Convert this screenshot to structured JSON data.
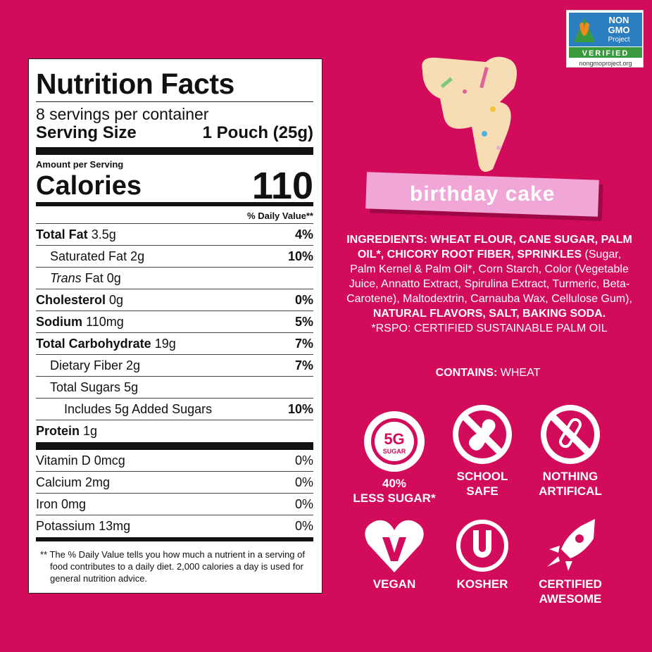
{
  "nutrition": {
    "title": "Nutrition Facts",
    "servings": "8 servings per container",
    "serving_size_label": "Serving Size",
    "serving_size_value": "1 Pouch (25g)",
    "amount_per_serving": "Amount per Serving",
    "calories_label": "Calories",
    "calories_value": "110",
    "daily_value_header": "% Daily Value**",
    "rows": [
      {
        "name": "Total Fat",
        "amount": "3.5g",
        "dv": "4%"
      },
      {
        "name": "Saturated Fat",
        "amount": "2g",
        "dv": "10%"
      },
      {
        "name": "Trans",
        "name2": "Fat",
        "amount": "0g",
        "dv": ""
      },
      {
        "name": "Cholesterol",
        "amount": "0g",
        "dv": "0%"
      },
      {
        "name": "Sodium",
        "amount": "110mg",
        "dv": "5%"
      },
      {
        "name": "Total Carbohydrate",
        "amount": "19g",
        "dv": "7%"
      },
      {
        "name": "Dietary Fiber",
        "amount": "2g",
        "dv": "7%"
      },
      {
        "name": "Total Sugars",
        "amount": "5g",
        "dv": ""
      },
      {
        "name": "Includes 5g Added Sugars",
        "amount": "",
        "dv": "10%"
      },
      {
        "name": "Protein",
        "amount": "1g",
        "dv": ""
      }
    ],
    "vitamins": [
      {
        "name": "Vitamin D",
        "amount": "0mcg",
        "dv": "0%"
      },
      {
        "name": "Calcium",
        "amount": "2mg",
        "dv": "0%"
      },
      {
        "name": "Iron",
        "amount": "0mg",
        "dv": "0%"
      },
      {
        "name": "Potassium",
        "amount": "13mg",
        "dv": "0%"
      }
    ],
    "footnote": "** The % Daily Value tells you how much a nutrient in a serving of food contributes to a daily diet. 2,000 calories a day is used for general nutrition advice."
  },
  "product": {
    "flavor": "birthday cake",
    "ingredients_bold1": "INGREDIENTS: WHEAT FLOUR, CANE SUGAR, PALM OIL*, CHICORY ROOT FIBER, SPRINKLES",
    "ingredients_regular": " (Sugar, Palm Kernel & Palm Oil*, Corn Starch, Color (Vegetable Juice, Annatto Extract, Spirulina Extract, Turmeric, Beta-Carotene), Maltodextrin, Carnauba Wax, Cellulose Gum), ",
    "ingredients_bold2": "NATURAL FLAVORS, SALT, BAKING SODA.",
    "rspo_note": "*RSPO: CERTIFIED SUSTAINABLE PALM OIL",
    "contains_label": "CONTAINS:",
    "contains_value": " WHEAT",
    "nongmo": {
      "line1": "NON",
      "line2": "GMO",
      "line3": "Project",
      "verified": "VERIFIED",
      "url": "nongmoproject.org"
    },
    "badges": [
      {
        "icon": "5g-sugar-icon",
        "icon_text": "5G",
        "icon_sub": "SUGAR",
        "line1": "40%",
        "line2": "LESS SUGAR*"
      },
      {
        "icon": "no-peanut-icon",
        "line1": "SCHOOL",
        "line2": "SAFE"
      },
      {
        "icon": "no-test-tube-icon",
        "line1": "NOTHING",
        "line2": "ARTIFICAL"
      },
      {
        "icon": "vegan-heart-icon",
        "line1": "VEGAN",
        "line2": ""
      },
      {
        "icon": "kosher-u-icon",
        "line1": "KOSHER",
        "line2": ""
      },
      {
        "icon": "rocket-icon",
        "line1": "CERTIFIED",
        "line2": "AWESOME"
      }
    ]
  },
  "colors": {
    "background": "#d20b5b",
    "banner": "#f0a6d6"
  }
}
